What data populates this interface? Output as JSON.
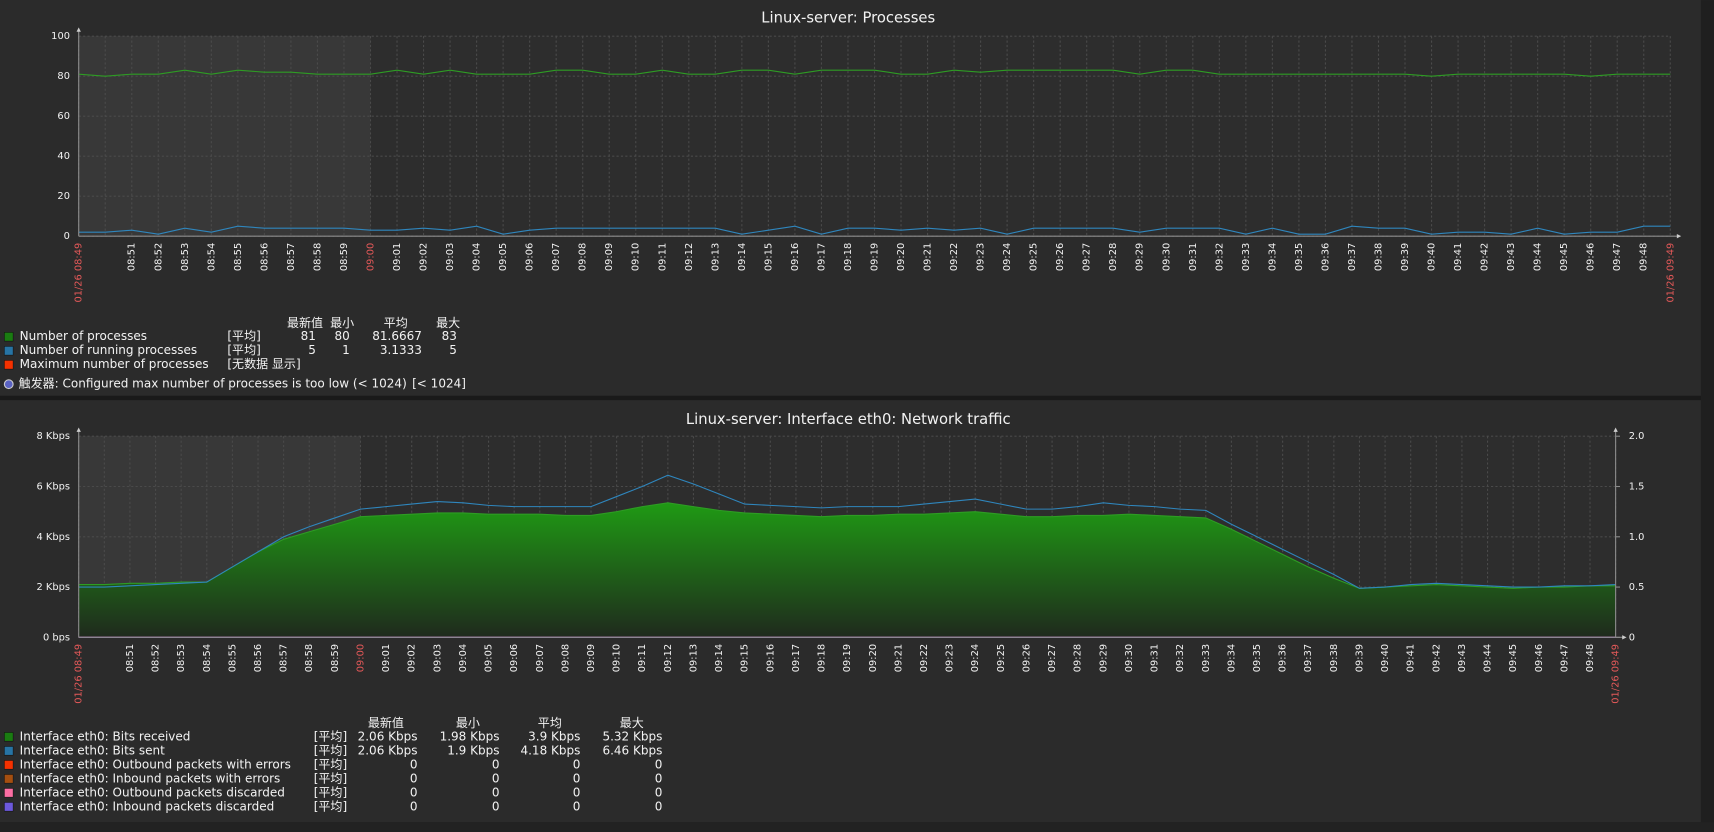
{
  "chart_data": [
    {
      "type": "line",
      "title": "Linux-server: Processes",
      "categories": [
        "01/26 08:49",
        null,
        "08:51",
        "08:52",
        "08:53",
        "08:54",
        "08:55",
        "08:56",
        "08:57",
        "08:58",
        "08:59",
        "09:00",
        "09:01",
        "09:02",
        "09:03",
        "09:04",
        "09:05",
        "09:06",
        "09:07",
        "09:08",
        "09:09",
        "09:10",
        "09:11",
        "09:12",
        "09:13",
        "09:14",
        "09:15",
        "09:16",
        "09:17",
        "09:18",
        "09:19",
        "09:20",
        "09:21",
        "09:22",
        "09:23",
        "09:24",
        "09:25",
        "09:26",
        "09:27",
        "09:28",
        "09:29",
        "09:30",
        "09:31",
        "09:32",
        "09:33",
        "09:34",
        "09:35",
        "09:36",
        "09:37",
        "09:38",
        "09:39",
        "09:40",
        "09:41",
        "09:42",
        "09:43",
        "09:44",
        "09:45",
        "09:46",
        "09:47",
        "09:48",
        "01/26 09:49"
      ],
      "ylim": [
        0,
        100
      ],
      "yticks": [
        0,
        20,
        40,
        60,
        80,
        100
      ],
      "grid": true,
      "legend_columns": [
        "最新值",
        "最小",
        "平均",
        "最大"
      ],
      "series": [
        {
          "name": "Number of processes",
          "color": "#1a7c11",
          "line_color": "#2e9c24",
          "function": "[平均]",
          "values": [
            81,
            80,
            81,
            81,
            83,
            81,
            83,
            82,
            82,
            81,
            81,
            81,
            83,
            81,
            83,
            81,
            81,
            81,
            83,
            83,
            81,
            81,
            83,
            81,
            81,
            83,
            83,
            81,
            83,
            83,
            83,
            81,
            81,
            83,
            82,
            83,
            83,
            83,
            83,
            83,
            81,
            83,
            83,
            81,
            81,
            81,
            81,
            81,
            81,
            81,
            81,
            80,
            81,
            81,
            81,
            81,
            81,
            80,
            81,
            81,
            81
          ],
          "legend_values": [
            81,
            80,
            81.6667,
            83
          ]
        },
        {
          "name": "Number of running processes",
          "color": "#2774a4",
          "line_color": "#2f86bd",
          "function": "[平均]",
          "values": [
            2,
            2,
            3,
            1,
            4,
            2,
            5,
            4,
            4,
            4,
            4,
            3,
            3,
            4,
            3,
            5,
            1,
            3,
            4,
            4,
            4,
            4,
            4,
            4,
            4,
            1,
            3,
            5,
            1,
            4,
            4,
            3,
            4,
            3,
            4,
            1,
            4,
            4,
            4,
            4,
            2,
            4,
            4,
            4,
            1,
            4,
            1,
            1,
            5,
            4,
            4,
            1,
            2,
            2,
            1,
            4,
            1,
            2,
            2,
            5,
            5
          ],
          "legend_values": [
            5,
            1,
            3.1333,
            5
          ]
        },
        {
          "name": "Maximum number of processes",
          "color": "#f63100",
          "function": "[无数据 显示]"
        }
      ],
      "trigger": {
        "color": "#5a62c2",
        "text": "触发器: Configured max number of processes is too low (< 1024)",
        "condition": "[< 1024]"
      }
    },
    {
      "type": "area",
      "title": "Linux-server: Interface eth0: Network traffic",
      "categories": [
        "01/26 08:49",
        null,
        "08:51",
        "08:52",
        "08:53",
        "08:54",
        "08:55",
        "08:56",
        "08:57",
        "08:58",
        "08:59",
        "09:00",
        "09:01",
        "09:02",
        "09:03",
        "09:04",
        "09:05",
        "09:06",
        "09:07",
        "09:08",
        "09:09",
        "09:10",
        "09:11",
        "09:12",
        "09:13",
        "09:14",
        "09:15",
        "09:16",
        "09:17",
        "09:18",
        "09:19",
        "09:20",
        "09:21",
        "09:22",
        "09:23",
        "09:24",
        "09:25",
        "09:26",
        "09:27",
        "09:28",
        "09:29",
        "09:30",
        "09:31",
        "09:32",
        "09:33",
        "09:34",
        "09:35",
        "09:36",
        "09:37",
        "09:38",
        "09:39",
        "09:40",
        "09:41",
        "09:42",
        "09:43",
        "09:44",
        "09:45",
        "09:46",
        "09:47",
        "09:48",
        "01/26 09:49"
      ],
      "ylim": [
        0,
        8000
      ],
      "yticks": [
        {
          "value": 0,
          "label": "0 bps"
        },
        {
          "value": 2000,
          "label": "2 Kbps"
        },
        {
          "value": 4000,
          "label": "4 Kbps"
        },
        {
          "value": 6000,
          "label": "6 Kbps"
        },
        {
          "value": 8000,
          "label": "8 Kbps"
        }
      ],
      "y2lim": [
        0,
        2
      ],
      "y2ticks": [
        0,
        0.5,
        {
          "value": 1,
          "label": "1.0"
        },
        {
          "value": 1.5,
          "label": "1.5"
        },
        {
          "value": 2,
          "label": "2.0"
        }
      ],
      "grid": true,
      "legend_columns": [
        "最新值",
        "最小",
        "平均",
        "最大"
      ],
      "series": [
        {
          "name": "Interface eth0: Bits received",
          "color": "#1a7c11",
          "line_color": "#2e9c24",
          "drawtype": "gradient",
          "function": "[平均]",
          "values": [
            2100,
            2100,
            2150,
            2150,
            2200,
            2200,
            2800,
            3400,
            3900,
            4200,
            4500,
            4800,
            4850,
            4900,
            4950,
            4950,
            4900,
            4900,
            4900,
            4850,
            4850,
            5000,
            5200,
            5350,
            5200,
            5050,
            4950,
            4900,
            4850,
            4800,
            4850,
            4850,
            4900,
            4900,
            4950,
            5000,
            4900,
            4800,
            4800,
            4850,
            4850,
            4900,
            4850,
            4800,
            4750,
            4300,
            3800,
            3300,
            2800,
            2350,
            1950,
            2000,
            2050,
            2100,
            2050,
            2000,
            1950,
            2000,
            2000,
            2050,
            2050
          ],
          "legend_values": [
            "2.06 Kbps",
            "1.98 Kbps",
            "3.9 Kbps",
            "5.32 Kbps"
          ]
        },
        {
          "name": "Interface eth0: Bits sent",
          "color": "#2774a4",
          "line_color": "#2f86bd",
          "drawtype": "line",
          "function": "[平均]",
          "values": [
            2000,
            2000,
            2050,
            2100,
            2150,
            2200,
            2800,
            3400,
            4000,
            4400,
            4750,
            5100,
            5200,
            5300,
            5400,
            5350,
            5250,
            5200,
            5200,
            5200,
            5200,
            5600,
            6000,
            6450,
            6100,
            5700,
            5300,
            5250,
            5200,
            5150,
            5200,
            5200,
            5200,
            5300,
            5400,
            5500,
            5300,
            5100,
            5100,
            5200,
            5350,
            5250,
            5200,
            5100,
            5050,
            4500,
            4000,
            3500,
            3000,
            2500,
            1950,
            2000,
            2100,
            2150,
            2100,
            2050,
            2000,
            2000,
            2050,
            2050,
            2100
          ],
          "legend_values": [
            "2.06 Kbps",
            "1.9 Kbps",
            "4.18 Kbps",
            "6.46 Kbps"
          ]
        },
        {
          "name": "Interface eth0: Outbound packets with errors",
          "color": "#f63100",
          "drawtype": "line",
          "axis": "y2",
          "function": "[平均]",
          "values": [
            0,
            0,
            0,
            0,
            0,
            0,
            0,
            0,
            0,
            0,
            0,
            0,
            0,
            0,
            0,
            0,
            0,
            0,
            0,
            0,
            0,
            0,
            0,
            0,
            0,
            0,
            0,
            0,
            0,
            0,
            0,
            0,
            0,
            0,
            0,
            0,
            0,
            0,
            0,
            0,
            0,
            0,
            0,
            0,
            0,
            0,
            0,
            0,
            0,
            0,
            0,
            0,
            0,
            0,
            0,
            0,
            0,
            0,
            0,
            0,
            0
          ],
          "legend_values": [
            0,
            0,
            0,
            0
          ]
        },
        {
          "name": "Interface eth0: Inbound packets with errors",
          "color": "#a54f10",
          "drawtype": "line",
          "axis": "y2",
          "function": "[平均]",
          "values": [
            0,
            0,
            0,
            0,
            0,
            0,
            0,
            0,
            0,
            0,
            0,
            0,
            0,
            0,
            0,
            0,
            0,
            0,
            0,
            0,
            0,
            0,
            0,
            0,
            0,
            0,
            0,
            0,
            0,
            0,
            0,
            0,
            0,
            0,
            0,
            0,
            0,
            0,
            0,
            0,
            0,
            0,
            0,
            0,
            0,
            0,
            0,
            0,
            0,
            0,
            0,
            0,
            0,
            0,
            0,
            0,
            0,
            0,
            0,
            0,
            0
          ],
          "legend_values": [
            0,
            0,
            0,
            0
          ]
        },
        {
          "name": "Interface eth0: Outbound packets discarded",
          "color": "#fc6ea3",
          "drawtype": "line",
          "axis": "y2",
          "function": "[平均]",
          "values": [
            0,
            0,
            0,
            0,
            0,
            0,
            0,
            0,
            0,
            0,
            0,
            0,
            0,
            0,
            0,
            0,
            0,
            0,
            0,
            0,
            0,
            0,
            0,
            0,
            0,
            0,
            0,
            0,
            0,
            0,
            0,
            0,
            0,
            0,
            0,
            0,
            0,
            0,
            0,
            0,
            0,
            0,
            0,
            0,
            0,
            0,
            0,
            0,
            0,
            0,
            0,
            0,
            0,
            0,
            0,
            0,
            0,
            0,
            0,
            0,
            0
          ],
          "legend_values": [
            0,
            0,
            0,
            0
          ]
        },
        {
          "name": "Interface eth0: Inbound packets discarded",
          "color": "#6c59dc",
          "drawtype": "line",
          "axis": "y2",
          "function": "[平均]",
          "values": [
            0,
            0,
            0,
            0,
            0,
            0,
            0,
            0,
            0,
            0,
            0,
            0,
            0,
            0,
            0,
            0,
            0,
            0,
            0,
            0,
            0,
            0,
            0,
            0,
            0,
            0,
            0,
            0,
            0,
            0,
            0,
            0,
            0,
            0,
            0,
            0,
            0,
            0,
            0,
            0,
            0,
            0,
            0,
            0,
            0,
            0,
            0,
            0,
            0,
            0,
            0,
            0,
            0,
            0,
            0,
            0,
            0,
            0,
            0,
            0,
            0
          ],
          "legend_values": [
            0,
            0,
            0,
            0
          ]
        }
      ]
    }
  ]
}
